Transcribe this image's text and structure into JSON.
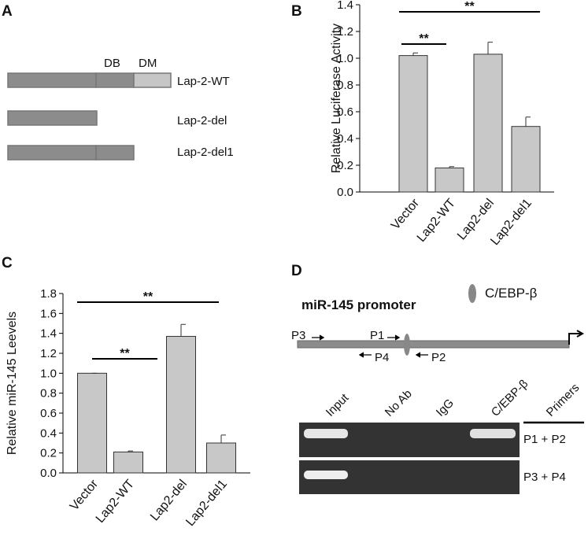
{
  "panel_labels": [
    "A",
    "B",
    "C",
    "D"
  ],
  "panel_a": {
    "domains": [
      "DB",
      "DM"
    ],
    "constructs": [
      "Lap-2-WT",
      "Lap-2-del",
      "Lap-2-del1"
    ]
  },
  "chart_data": [
    {
      "type": "bar",
      "y_label": "Relative Luciferase Activity",
      "categories": [
        "Vector",
        "Lap2-WT",
        "Lap2-del",
        "Lap2-del1"
      ],
      "values": [
        1.02,
        0.18,
        1.03,
        0.49
      ],
      "errors": [
        0.02,
        0.01,
        0.09,
        0.07
      ],
      "color": "#c8c8c8",
      "ylim": [
        0,
        1.4
      ],
      "yticks": [
        {
          "value": 0,
          "label": "0.0"
        },
        0.2,
        0.4,
        0.6,
        0.8,
        {
          "value": 1,
          "label": "1.0"
        },
        1.2,
        1.4
      ],
      "annotations": [
        "**",
        "**"
      ]
    },
    {
      "type": "bar",
      "y_label": "Relative miR-145 Leevels",
      "categories": [
        "Vector",
        "Lap2-WT",
        "Lap2-del",
        "Lap2-del1"
      ],
      "values": [
        1.0,
        0.21,
        1.37,
        0.3
      ],
      "errors": [
        0,
        0.01,
        0.12,
        0.08
      ],
      "color": "#c8c8c8",
      "ylim": [
        0,
        1.8
      ],
      "yticks": [
        {
          "value": 0,
          "label": "0.0"
        },
        0.2,
        0.4,
        0.6,
        0.8,
        {
          "value": 1,
          "label": "1.0"
        },
        1.2,
        1.4,
        1.6,
        1.8
      ],
      "annotations": [
        "**",
        "**"
      ]
    }
  ],
  "panel_d": {
    "title": "miR-145 promoter",
    "factor": "C/EBP-β",
    "primers": [
      "P3",
      "P1",
      "P4",
      "P2"
    ],
    "lanes": [
      "Input",
      "No Ab",
      "IgG",
      "C/EBP-β"
    ],
    "primers_header": "Primers",
    "rows": [
      "P1 + P2",
      "P3 + P4"
    ]
  }
}
